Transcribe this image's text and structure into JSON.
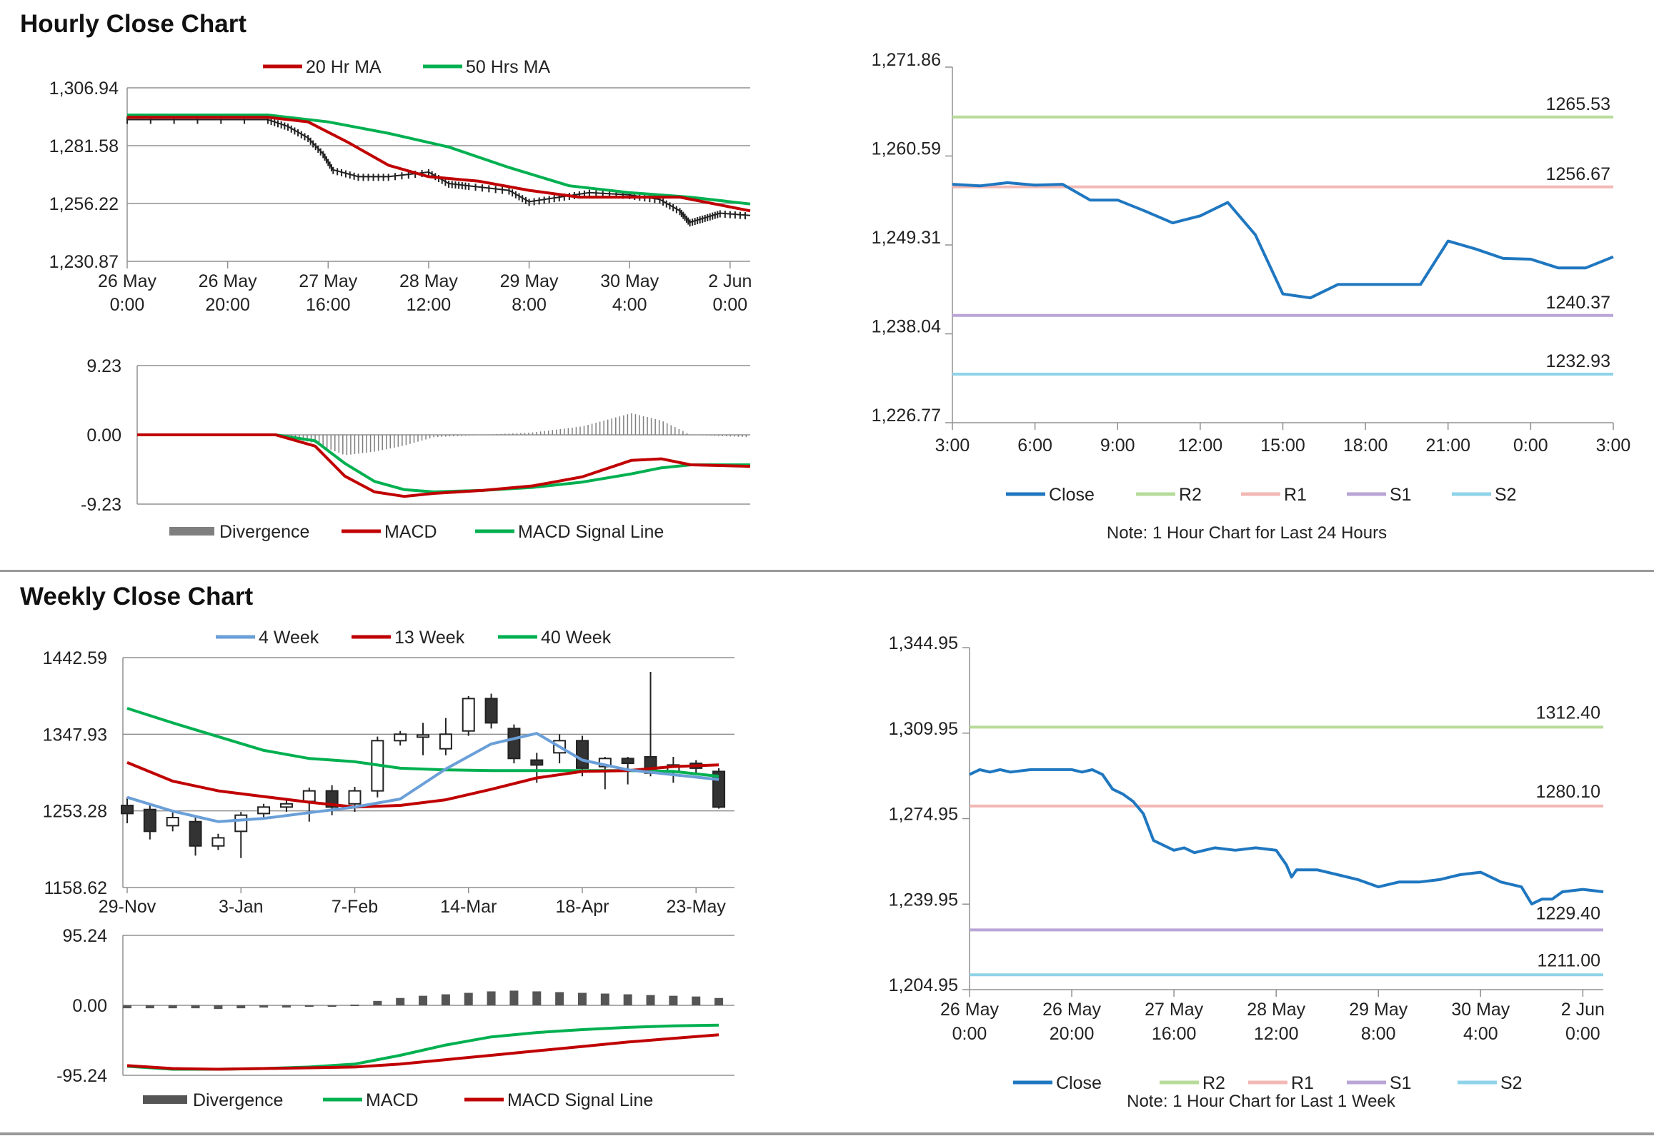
{
  "sections": {
    "hourly_title": "Hourly Close Chart",
    "weekly_title": "Weekly Close Chart"
  },
  "colors": {
    "ma20": "#c00000",
    "ma50": "#00b050",
    "close": "#1f77c0",
    "r2": "#b7dc9a",
    "r1": "#f2b8b5",
    "s1": "#b9a5d6",
    "s2": "#8fd3e8",
    "ma4": "#6a9fd8",
    "grid": "#808080",
    "divergence": "#7f7f7f"
  },
  "chart_data": [
    {
      "id": "hourly_price",
      "type": "line",
      "legend": [
        "20 Hr MA",
        "50 Hrs MA"
      ],
      "yticks": [
        "1,306.94",
        "1,281.58",
        "1,256.22",
        "1,230.87"
      ],
      "ylim": [
        1230.87,
        1306.94
      ],
      "xticks": [
        [
          "26 May",
          "0:00"
        ],
        [
          "26 May",
          "20:00"
        ],
        [
          "27 May",
          "16:00"
        ],
        [
          "28 May",
          "12:00"
        ],
        [
          "29 May",
          "8:00"
        ],
        [
          "30 May",
          "4:00"
        ],
        [
          "2 Jun",
          "0:00"
        ]
      ],
      "series": [
        {
          "name": "20 Hr MA",
          "x": [
            0,
            1.2,
            1.4,
            1.8,
            2.2,
            2.6,
            3.0,
            3.5,
            4.0,
            4.5,
            5.0,
            5.5,
            6.2
          ],
          "values": [
            1294,
            1294,
            1294,
            1292,
            1283,
            1273,
            1268,
            1266,
            1262,
            1259,
            1259,
            1259,
            1253
          ]
        },
        {
          "name": "50 Hrs MA",
          "x": [
            0,
            1.4,
            2.0,
            2.6,
            3.2,
            3.8,
            4.4,
            5.0,
            5.6,
            6.2
          ],
          "values": [
            1295,
            1295,
            1292,
            1287,
            1281,
            1272,
            1264,
            1261,
            1259,
            1256
          ]
        },
        {
          "name": "Price",
          "x": [
            0,
            1.4,
            1.6,
            1.8,
            1.95,
            2.05,
            2.3,
            2.6,
            3.0,
            3.2,
            3.4,
            3.8,
            4.0,
            4.3,
            4.6,
            5.0,
            5.3,
            5.5,
            5.6,
            5.75,
            5.9,
            6.2
          ],
          "values": [
            1293,
            1293,
            1290,
            1285,
            1278,
            1271,
            1268,
            1268,
            1270,
            1265,
            1264,
            1262,
            1257,
            1259,
            1261,
            1260,
            1258,
            1253,
            1248,
            1250,
            1252,
            1251
          ]
        }
      ]
    },
    {
      "id": "hourly_macd",
      "type": "line",
      "legend": [
        "Divergence",
        "MACD",
        "MACD Signal Line"
      ],
      "yticks": [
        "9.23",
        "0.00",
        "-9.23"
      ],
      "ylim": [
        -9.23,
        9.23
      ],
      "series": [
        {
          "name": "MACD",
          "x": [
            0,
            1.4,
            1.8,
            2.1,
            2.4,
            2.7,
            3.0,
            3.5,
            4.0,
            4.5,
            5.0,
            5.3,
            5.6,
            6.2
          ],
          "values": [
            0,
            0,
            -1.5,
            -5.5,
            -7.6,
            -8.2,
            -7.8,
            -7.4,
            -6.8,
            -5.6,
            -3.4,
            -3.2,
            -4.0,
            -4.2
          ]
        },
        {
          "name": "MACD Signal Line",
          "x": [
            0,
            1.4,
            1.8,
            2.1,
            2.4,
            2.7,
            3.0,
            3.5,
            4.0,
            4.5,
            5.0,
            5.3,
            5.6,
            6.2
          ],
          "values": [
            0,
            0,
            -0.8,
            -3.8,
            -6.2,
            -7.3,
            -7.6,
            -7.4,
            -7.0,
            -6.3,
            -5.2,
            -4.4,
            -4.0,
            -4.0
          ]
        }
      ]
    },
    {
      "id": "hourly_24h",
      "type": "line",
      "xticks": [
        "3:00",
        "6:00",
        "9:00",
        "12:00",
        "15:00",
        "18:00",
        "21:00",
        "0:00",
        "3:00"
      ],
      "yticks": [
        "1,271.86",
        "1,260.59",
        "1,249.31",
        "1,238.04",
        "1,226.77"
      ],
      "ylim": [
        1226.77,
        1271.86
      ],
      "legend": [
        "Close",
        "R2",
        "R1",
        "S1",
        "S2"
      ],
      "note": "Note: 1 Hour Chart for Last 24 Hours",
      "levels": {
        "R2": "1265.53",
        "R1": "1256.67",
        "S1": "1240.37",
        "S2": "1232.93"
      },
      "series": [
        {
          "name": "Close",
          "x": [
            0,
            1,
            2,
            3,
            4,
            5,
            6,
            7,
            8,
            9,
            10,
            11,
            12,
            13,
            14,
            15,
            16,
            17,
            18,
            19,
            20,
            21,
            22,
            23,
            24
          ],
          "values": [
            1257.0,
            1256.8,
            1257.2,
            1256.9,
            1257.0,
            1255.0,
            1255.0,
            1253.6,
            1252.1,
            1253.0,
            1254.7,
            1250.6,
            1243.1,
            1242.6,
            1244.3,
            1244.3,
            1244.3,
            1244.3,
            1249.8,
            1248.8,
            1247.6,
            1247.5,
            1246.4,
            1246.4,
            1247.8
          ]
        }
      ]
    },
    {
      "id": "weekly_price",
      "type": "line",
      "legend": [
        "4 Week",
        "13 Week",
        "40 Week"
      ],
      "yticks": [
        "1442.59",
        "1347.93",
        "1253.28",
        "1158.62"
      ],
      "ylim": [
        1158.62,
        1442.59
      ],
      "xticks": [
        "29-Nov",
        "3-Jan",
        "7-Feb",
        "14-Mar",
        "18-Apr",
        "23-May"
      ],
      "series": [
        {
          "name": "40 Week",
          "x": [
            0,
            2,
            4,
            6,
            8,
            10,
            12,
            14,
            16,
            18,
            20,
            22,
            24,
            26
          ],
          "values": [
            1380,
            1362,
            1345,
            1328,
            1318,
            1314,
            1306,
            1304,
            1303,
            1303,
            1303,
            1303,
            1302,
            1296
          ]
        },
        {
          "name": "13 Week",
          "x": [
            0,
            2,
            4,
            6,
            8,
            10,
            12,
            14,
            16,
            18,
            20,
            22,
            24,
            26
          ],
          "values": [
            1313,
            1290,
            1278,
            1271,
            1264,
            1258,
            1260,
            1267,
            1280,
            1294,
            1302,
            1303,
            1308,
            1310
          ]
        },
        {
          "name": "4 Week",
          "x": [
            0,
            2,
            4,
            6,
            8,
            10,
            12,
            14,
            16,
            18,
            20,
            22,
            24,
            26
          ],
          "values": [
            1270,
            1253,
            1240,
            1244,
            1251,
            1258,
            1268,
            1305,
            1336,
            1349,
            1316,
            1304,
            1298,
            1292
          ]
        }
      ],
      "candles": [
        {
          "o": 1260,
          "c": 1250,
          "h": 1270,
          "l": 1238
        },
        {
          "o": 1255,
          "c": 1228,
          "h": 1262,
          "l": 1218
        },
        {
          "o": 1235,
          "c": 1245,
          "h": 1252,
          "l": 1228
        },
        {
          "o": 1240,
          "c": 1210,
          "h": 1245,
          "l": 1198
        },
        {
          "o": 1210,
          "c": 1220,
          "h": 1225,
          "l": 1205
        },
        {
          "o": 1228,
          "c": 1248,
          "h": 1252,
          "l": 1195
        },
        {
          "o": 1250,
          "c": 1258,
          "h": 1262,
          "l": 1244
        },
        {
          "o": 1258,
          "c": 1262,
          "h": 1268,
          "l": 1252
        },
        {
          "o": 1265,
          "c": 1278,
          "h": 1282,
          "l": 1240
        },
        {
          "o": 1278,
          "c": 1258,
          "h": 1285,
          "l": 1248
        },
        {
          "o": 1262,
          "c": 1278,
          "h": 1283,
          "l": 1252
        },
        {
          "o": 1278,
          "c": 1340,
          "h": 1345,
          "l": 1270
        },
        {
          "o": 1340,
          "c": 1348,
          "h": 1352,
          "l": 1334
        },
        {
          "o": 1345,
          "c": 1347,
          "h": 1362,
          "l": 1322
        },
        {
          "o": 1330,
          "c": 1348,
          "h": 1368,
          "l": 1322
        },
        {
          "o": 1352,
          "c": 1392,
          "h": 1395,
          "l": 1346
        },
        {
          "o": 1392,
          "c": 1362,
          "h": 1398,
          "l": 1355
        },
        {
          "o": 1355,
          "c": 1318,
          "h": 1360,
          "l": 1312
        },
        {
          "o": 1316,
          "c": 1310,
          "h": 1325,
          "l": 1288
        },
        {
          "o": 1325,
          "c": 1340,
          "h": 1348,
          "l": 1312
        },
        {
          "o": 1340,
          "c": 1306,
          "h": 1346,
          "l": 1296
        },
        {
          "o": 1308,
          "c": 1318,
          "h": 1320,
          "l": 1280
        },
        {
          "o": 1318,
          "c": 1312,
          "h": 1320,
          "l": 1286
        },
        {
          "o": 1320,
          "c": 1300,
          "h": 1425,
          "l": 1296
        },
        {
          "o": 1302,
          "c": 1310,
          "h": 1320,
          "l": 1288
        },
        {
          "o": 1312,
          "c": 1306,
          "h": 1316,
          "l": 1298
        },
        {
          "o": 1302,
          "c": 1258,
          "h": 1306,
          "l": 1256
        }
      ]
    },
    {
      "id": "weekly_macd",
      "type": "line",
      "legend": [
        "Divergence",
        "MACD",
        "MACD Signal Line"
      ],
      "yticks": [
        "95.24",
        "0.00",
        "-95.24"
      ],
      "ylim": [
        -95.24,
        95.24
      ],
      "divergence": [
        -4,
        -4,
        -4,
        -4,
        -5,
        -4,
        -3,
        -3,
        -2,
        -1,
        1,
        6,
        10,
        13,
        15,
        17,
        19,
        20,
        19,
        18,
        17,
        16,
        15,
        14,
        13,
        12,
        10
      ],
      "series": [
        {
          "name": "MACD",
          "x": [
            0,
            2,
            4,
            6,
            8,
            10,
            12,
            14,
            16,
            18,
            20,
            22,
            24,
            26
          ],
          "values": [
            -83,
            -87,
            -87,
            -86,
            -84,
            -80,
            -68,
            -54,
            -43,
            -37,
            -33,
            -30,
            -28,
            -27
          ]
        },
        {
          "name": "MACD Signal Line",
          "x": [
            0,
            2,
            4,
            6,
            8,
            10,
            12,
            14,
            16,
            18,
            20,
            22,
            24,
            26
          ],
          "values": [
            -82,
            -86,
            -87,
            -86,
            -85,
            -84,
            -80,
            -74,
            -68,
            -62,
            -56,
            -50,
            -45,
            -40
          ]
        }
      ]
    },
    {
      "id": "weekly_1w",
      "type": "line",
      "xticks": [
        [
          "26 May",
          "0:00"
        ],
        [
          "26 May",
          "20:00"
        ],
        [
          "27 May",
          "16:00"
        ],
        [
          "28 May",
          "12:00"
        ],
        [
          "29 May",
          "8:00"
        ],
        [
          "30 May",
          "4:00"
        ],
        [
          "2 Jun",
          "0:00"
        ]
      ],
      "yticks": [
        "1,344.95",
        "1,309.95",
        "1,274.95",
        "1,239.95",
        "1,204.95"
      ],
      "ylim": [
        1204.95,
        1344.95
      ],
      "legend": [
        "Close",
        "R2",
        "R1",
        "S1",
        "S2"
      ],
      "note": "Note: 1 Hour Chart for Last 1 Week",
      "levels": {
        "R2": "1312.40",
        "R1": "1280.10",
        "S1": "1229.40",
        "S2": "1211.00"
      },
      "series": [
        {
          "name": "Close",
          "x": [
            0,
            0.1,
            0.2,
            0.3,
            0.4,
            0.6,
            0.8,
            1.0,
            1.1,
            1.2,
            1.3,
            1.4,
            1.5,
            1.6,
            1.7,
            1.8,
            1.9,
            2.0,
            2.1,
            2.2,
            2.3,
            2.4,
            2.6,
            2.8,
            3.0,
            3.1,
            3.15,
            3.2,
            3.4,
            3.6,
            3.8,
            4.0,
            4.2,
            4.4,
            4.6,
            4.8,
            5.0,
            5.2,
            5.4,
            5.5,
            5.6,
            5.7,
            5.8,
            6.0,
            6.2
          ],
          "values": [
            1293,
            1295,
            1294,
            1295,
            1294,
            1295,
            1295,
            1295,
            1294,
            1295,
            1293,
            1287,
            1285,
            1282,
            1277,
            1266,
            1264,
            1262,
            1263,
            1261,
            1262,
            1263,
            1262,
            1263,
            1262,
            1256,
            1251,
            1254,
            1254,
            1252,
            1250,
            1247,
            1249,
            1249,
            1250,
            1252,
            1253,
            1249,
            1247,
            1240,
            1242,
            1242,
            1245,
            1246,
            1245
          ]
        }
      ]
    }
  ]
}
